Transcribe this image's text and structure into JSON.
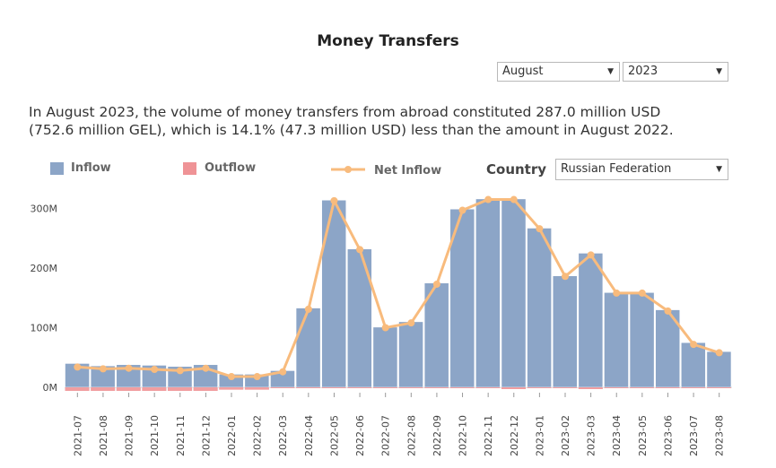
{
  "header": {
    "title": "Money Transfers"
  },
  "filters": {
    "month": {
      "value": "August"
    },
    "year": {
      "value": "2023"
    },
    "country": {
      "label": "Country",
      "value": "Russian Federation"
    }
  },
  "summary": {
    "line1": "In August 2023, the volume of money transfers from abroad constituted 287.0 million USD",
    "line2": "(752.6 million GEL), which is 14.1% (47.3 million USD) less than the amount in August 2022."
  },
  "legend": {
    "inflow": "Inflow",
    "outflow": "Outflow",
    "net_inflow": "Net Inflow"
  },
  "colors": {
    "inflow": "#8ca5c7",
    "outflow": "#ef9396",
    "net_inflow": "#f8bb7d"
  },
  "chart_data": {
    "type": "bar",
    "categories": [
      "2021-07",
      "2021-08",
      "2021-09",
      "2021-10",
      "2021-11",
      "2021-12",
      "2022-01",
      "2022-02",
      "2022-03",
      "2022-04",
      "2022-05",
      "2022-06",
      "2022-07",
      "2022-08",
      "2022-09",
      "2022-10",
      "2022-11",
      "2022-12",
      "2023-01",
      "2023-02",
      "2023-03",
      "2023-04",
      "2023-05",
      "2023-06",
      "2023-07",
      "2023-08"
    ],
    "series": [
      {
        "name": "Inflow",
        "values": [
          40,
          36,
          38,
          37,
          35,
          38,
          22,
          22,
          28,
          133,
          314,
          232,
          101,
          110,
          175,
          299,
          316,
          316,
          267,
          187,
          225,
          159,
          159,
          130,
          75,
          60
        ]
      },
      {
        "name": "Outflow",
        "values": [
          -6,
          -6,
          -6,
          -6,
          -6,
          -6,
          -4,
          -4,
          -1,
          -1,
          -1,
          -1,
          -1,
          -1,
          -1,
          -1,
          -1,
          -3,
          -1,
          -1,
          -3,
          -1,
          -1,
          -1,
          -1,
          -1
        ]
      },
      {
        "name": "Net Inflow",
        "values": [
          34,
          31,
          32,
          30,
          28,
          32,
          18,
          18,
          26,
          131,
          313,
          231,
          100,
          108,
          173,
          297,
          315,
          315,
          266,
          186,
          222,
          158,
          158,
          128,
          72,
          58
        ]
      }
    ],
    "y_ticks": [
      "0M",
      "100M",
      "200M",
      "300M"
    ],
    "ylim": [
      -8,
      335
    ],
    "grid": false,
    "legend_position": "top-left"
  }
}
